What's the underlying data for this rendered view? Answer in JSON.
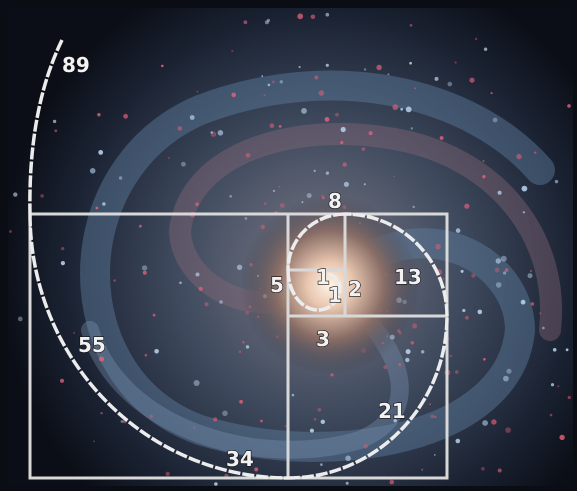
{
  "labels": [
    "89",
    "55",
    "34",
    "21",
    "13",
    "8",
    "5",
    "3",
    "2",
    "1",
    "1"
  ]
}
